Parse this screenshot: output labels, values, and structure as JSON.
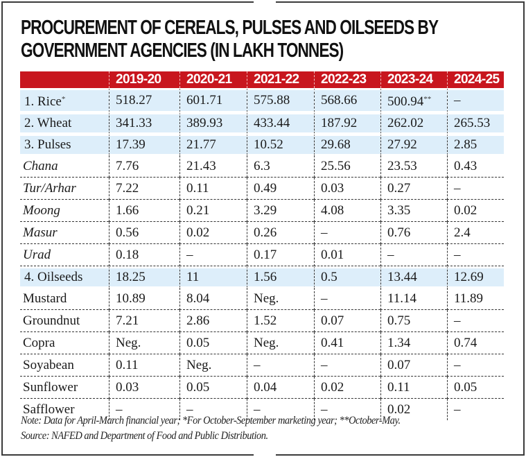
{
  "chart_data": {
    "type": "table",
    "title": "PROCUREMENT OF CEREALS, PULSES AND OILSEEDS BY GOVERNMENT AGENCIES (IN LAKH TONNES)",
    "title_lines": [
      "PROCUREMENT OF CEREALS, PULSES AND OILSEEDS BY",
      "GOVERNMENT AGENCIES (IN LAKH TONNES)"
    ],
    "columns": [
      "",
      "2019-20",
      "2020-21",
      "2021-22",
      "2022-23",
      "2023-24",
      "2024-25"
    ],
    "rows": [
      {
        "label": "1. Rice",
        "label_mark": "*",
        "style": "highlight",
        "values": [
          "518.27",
          "601.71",
          "575.88",
          "568.66",
          "500.94",
          "–"
        ],
        "value_marks": [
          "",
          "",
          "",
          "",
          "**",
          ""
        ]
      },
      {
        "label": "2. Wheat",
        "label_mark": "",
        "style": "highlight",
        "values": [
          "341.33",
          "389.93",
          "433.44",
          "187.92",
          "262.02",
          "265.53"
        ],
        "value_marks": [
          "",
          "",
          "",
          "",
          "",
          ""
        ]
      },
      {
        "label": "3. Pulses",
        "label_mark": "",
        "style": "highlight",
        "values": [
          "17.39",
          "21.77",
          "10.52",
          "29.68",
          "27.92",
          "2.85"
        ],
        "value_marks": [
          "",
          "",
          "",
          "",
          "",
          ""
        ]
      },
      {
        "label": "Chana",
        "label_mark": "",
        "style": "sub-italic",
        "values": [
          "7.76",
          "21.43",
          "6.3",
          "25.56",
          "23.53",
          "0.43"
        ],
        "value_marks": [
          "",
          "",
          "",
          "",
          "",
          ""
        ]
      },
      {
        "label": "Tur/Arhar",
        "label_mark": "",
        "style": "sub-italic",
        "values": [
          "7.22",
          "0.11",
          "0.49",
          "0.03",
          "0.27",
          "–"
        ],
        "value_marks": [
          "",
          "",
          "",
          "",
          "",
          ""
        ]
      },
      {
        "label": "Moong",
        "label_mark": "",
        "style": "sub-italic",
        "values": [
          "1.66",
          "0.21",
          "3.29",
          "4.08",
          "3.35",
          "0.02"
        ],
        "value_marks": [
          "",
          "",
          "",
          "",
          "",
          ""
        ]
      },
      {
        "label": "Masur",
        "label_mark": "",
        "style": "sub-italic",
        "values": [
          "0.56",
          "0.02",
          "0.26",
          "–",
          "0.76",
          "2.4"
        ],
        "value_marks": [
          "",
          "",
          "",
          "",
          "",
          ""
        ]
      },
      {
        "label": "Urad",
        "label_mark": "",
        "style": "sub-italic",
        "values": [
          "0.18",
          "–",
          "0.17",
          "0.01",
          "–",
          "–"
        ],
        "value_marks": [
          "",
          "",
          "",
          "",
          "",
          ""
        ]
      },
      {
        "label": "4. Oilseeds",
        "label_mark": "",
        "style": "highlight",
        "values": [
          "18.25",
          "11",
          "1.56",
          "0.5",
          "13.44",
          "12.69"
        ],
        "value_marks": [
          "",
          "",
          "",
          "",
          "",
          ""
        ]
      },
      {
        "label": "Mustard",
        "label_mark": "",
        "style": "sub",
        "values": [
          "10.89",
          "8.04",
          "Neg.",
          "–",
          "11.14",
          "11.89"
        ],
        "value_marks": [
          "",
          "",
          "",
          "",
          "",
          ""
        ]
      },
      {
        "label": "Groundnut",
        "label_mark": "",
        "style": "sub",
        "values": [
          "7.21",
          "2.86",
          "1.52",
          "0.07",
          "0.75",
          "–"
        ],
        "value_marks": [
          "",
          "",
          "",
          "",
          "",
          ""
        ]
      },
      {
        "label": "Copra",
        "label_mark": "",
        "style": "sub",
        "values": [
          "Neg.",
          "0.05",
          "Neg.",
          "0.41",
          "1.34",
          "0.74"
        ],
        "value_marks": [
          "",
          "",
          "",
          "",
          "",
          ""
        ]
      },
      {
        "label": "Soyabean",
        "label_mark": "",
        "style": "sub",
        "values": [
          "0.11",
          "Neg.",
          "–",
          "–",
          "0.07",
          "–"
        ],
        "value_marks": [
          "",
          "",
          "",
          "",
          "",
          ""
        ]
      },
      {
        "label": "Sunflower",
        "label_mark": "",
        "style": "sub",
        "values": [
          "0.03",
          "0.05",
          "0.04",
          "0.02",
          "0.11",
          "0.05"
        ],
        "value_marks": [
          "",
          "",
          "",
          "",
          "",
          ""
        ]
      },
      {
        "label": "Safflower",
        "label_mark": "",
        "style": "sub-last",
        "values": [
          "–",
          "–",
          "–",
          "–",
          "0.02",
          "–"
        ],
        "value_marks": [
          "",
          "",
          "",
          "",
          "",
          ""
        ]
      }
    ],
    "notes": [
      "Note: Data for April-March financial year; *For October-September marketing year; **October-May.",
      "Source: NAFED and Department of Food and Public Distribution."
    ]
  },
  "colors": {
    "header_bg": "#c8161e",
    "header_text": "#ffffff",
    "highlight_row_bg": "#ddeefa"
  }
}
